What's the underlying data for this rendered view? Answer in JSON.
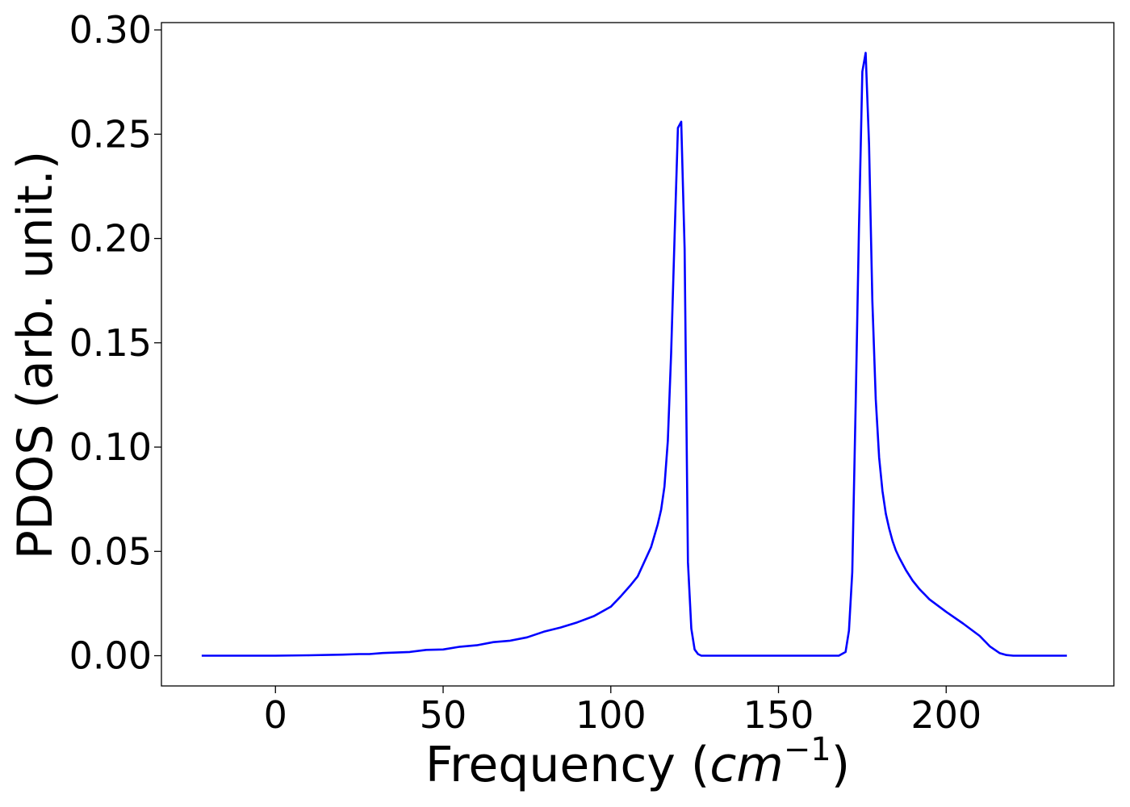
{
  "chart_data": {
    "type": "line",
    "title": "",
    "xlabel": {
      "prefix": "Frequency (",
      "base": "cm",
      "superscript": "−1",
      "suffix": ")"
    },
    "ylabel": "PDOS (arb. unit.)",
    "xlim": [
      -34,
      250
    ],
    "ylim": [
      -0.0145,
      0.3035
    ],
    "xticks": [
      0,
      50,
      100,
      150,
      200
    ],
    "xtick_labels": [
      "0",
      "50",
      "100",
      "150",
      "200"
    ],
    "yticks": [
      0.0,
      0.05,
      0.1,
      0.15,
      0.2,
      0.25,
      0.3
    ],
    "ytick_labels": [
      "0.00",
      "0.05",
      "0.10",
      "0.15",
      "0.20",
      "0.25",
      "0.30"
    ],
    "grid": false,
    "legend": null,
    "series": [
      {
        "color": "#0000ff",
        "x": [
          -22,
          0,
          10,
          20,
          25,
          28,
          32,
          40,
          45,
          50,
          55,
          60,
          65,
          70,
          75,
          80,
          85,
          90,
          95,
          100,
          103,
          106,
          108,
          110,
          112,
          114,
          115,
          116,
          117,
          118,
          119,
          120,
          121,
          122,
          123,
          124,
          125,
          126,
          127,
          128,
          129,
          130,
          140,
          150,
          160,
          168,
          170,
          171,
          172,
          173,
          174,
          175,
          176,
          177,
          178,
          179,
          180,
          181,
          182,
          183,
          184,
          185,
          186,
          188,
          190,
          192,
          195,
          200,
          205,
          210,
          213,
          216,
          218,
          220,
          225,
          236
        ],
        "y": [
          0.0,
          0.0,
          0.0002,
          0.0005,
          0.0008,
          0.0008,
          0.0013,
          0.0018,
          0.0028,
          0.003,
          0.0043,
          0.005,
          0.0065,
          0.0072,
          0.0088,
          0.0115,
          0.0135,
          0.016,
          0.019,
          0.0235,
          0.0285,
          0.034,
          0.038,
          0.045,
          0.052,
          0.063,
          0.07,
          0.081,
          0.103,
          0.145,
          0.2,
          0.253,
          0.256,
          0.195,
          0.045,
          0.013,
          0.003,
          0.0008,
          0.0,
          0.0,
          0.0,
          0.0,
          0.0,
          0.0,
          0.0,
          0.0,
          0.0018,
          0.012,
          0.04,
          0.12,
          0.205,
          0.28,
          0.289,
          0.245,
          0.17,
          0.123,
          0.095,
          0.079,
          0.068,
          0.061,
          0.055,
          0.0505,
          0.047,
          0.041,
          0.036,
          0.032,
          0.027,
          0.021,
          0.0155,
          0.0095,
          0.0045,
          0.0012,
          0.0003,
          0.0,
          0.0,
          0.0
        ]
      }
    ]
  }
}
